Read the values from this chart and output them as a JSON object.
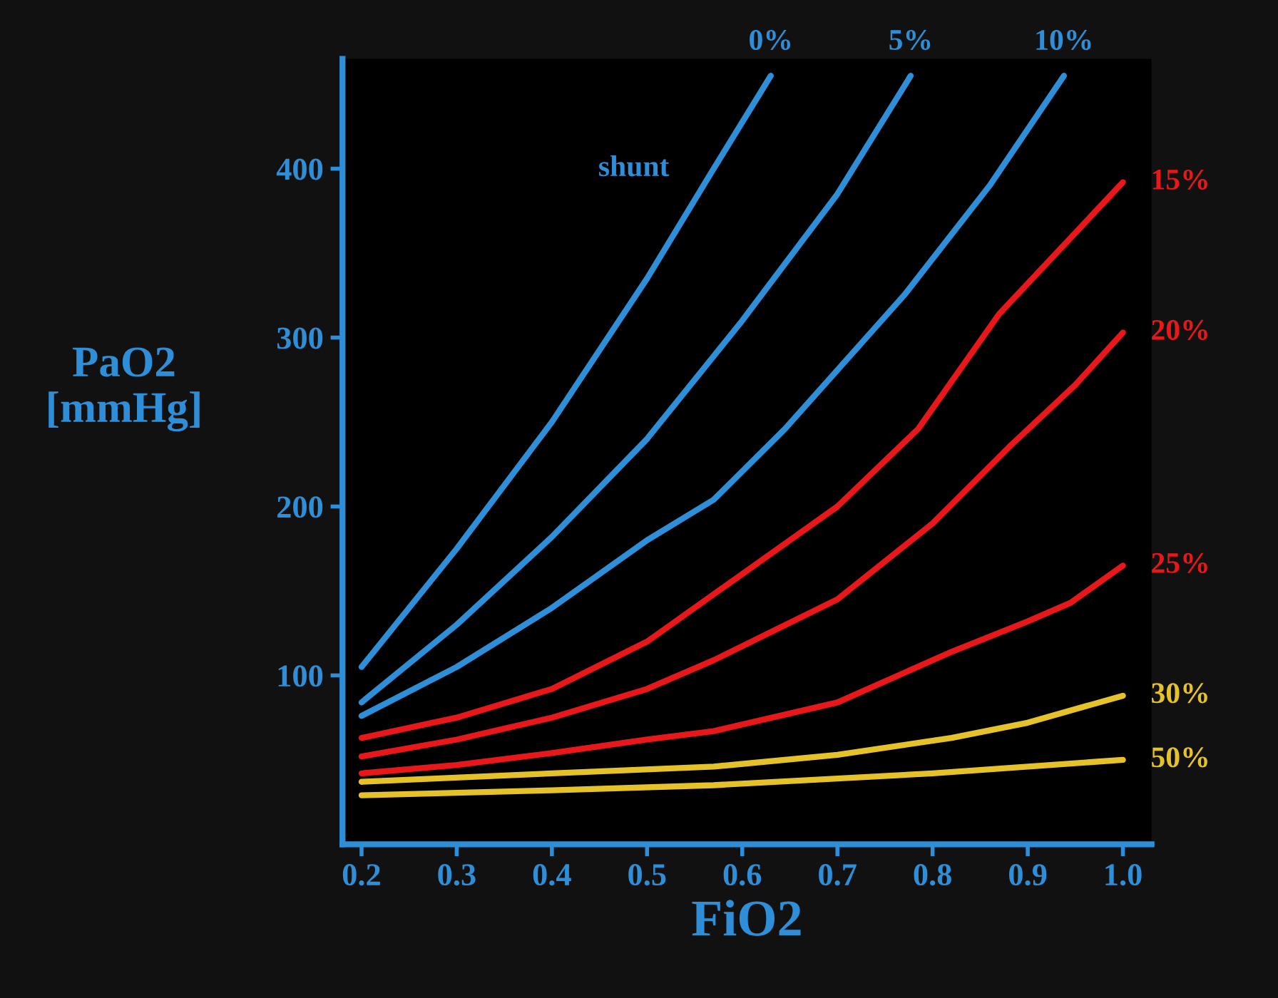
{
  "chart_data": {
    "type": "line",
    "xlabel": "FiO2",
    "ylabel": "PaO2\n[mmHg]",
    "xlim": [
      0.18,
      1.03
    ],
    "ylim": [
      0,
      465
    ],
    "xticks": [
      0.2,
      0.3,
      0.4,
      0.5,
      0.6,
      0.7,
      0.8,
      0.9,
      {
        "value": 1,
        "label": "1.0"
      }
    ],
    "yticks": [
      100,
      200,
      300,
      400
    ],
    "grid": false,
    "legend": false,
    "marker": "none",
    "line_style": "solid",
    "annotations": [
      "shunt"
    ],
    "series": [
      {
        "name": "0%",
        "color": "#2f8ed8",
        "x": [
          0.2,
          0.3,
          0.4,
          0.5,
          0.57,
          0.63
        ],
        "values": [
          105,
          175,
          250,
          335,
          400,
          455
        ]
      },
      {
        "name": "5%",
        "color": "#2f8ed8",
        "x": [
          0.2,
          0.3,
          0.4,
          0.5,
          0.6,
          0.7,
          0.777
        ],
        "values": [
          84,
          130,
          182,
          240,
          310,
          385,
          455
        ]
      },
      {
        "name": "10%",
        "color": "#2f8ed8",
        "x": [
          0.2,
          0.3,
          0.4,
          0.5,
          0.57,
          0.645,
          0.77,
          0.86,
          0.938
        ],
        "values": [
          76,
          105,
          140,
          180,
          204,
          246,
          325,
          390,
          455
        ]
      },
      {
        "name": "15%",
        "color": "#e8181a",
        "x": [
          0.2,
          0.3,
          0.4,
          0.5,
          0.57,
          0.7,
          0.785,
          0.87,
          1.0
        ],
        "values": [
          63,
          75,
          92,
          120,
          148,
          200,
          246,
          314,
          392
        ]
      },
      {
        "name": "20%",
        "color": "#e8181a",
        "x": [
          0.2,
          0.3,
          0.4,
          0.5,
          0.57,
          0.7,
          0.8,
          0.88,
          0.95,
          1.0
        ],
        "values": [
          52,
          62,
          75,
          92,
          109,
          145,
          190,
          235,
          272,
          303
        ]
      },
      {
        "name": "25%",
        "color": "#e8181a",
        "x": [
          0.2,
          0.3,
          0.4,
          0.5,
          0.57,
          0.7,
          0.82,
          0.9,
          0.945,
          1.0
        ],
        "values": [
          42,
          47,
          54,
          62,
          67,
          84,
          114,
          132,
          143,
          165
        ]
      },
      {
        "name": "30%",
        "color": "#e6c22a",
        "x": [
          0.2,
          0.4,
          0.57,
          0.7,
          0.82,
          0.9,
          1.0
        ],
        "values": [
          37,
          42,
          46,
          53,
          63,
          72,
          88
        ]
      },
      {
        "name": "50%",
        "color": "#e6c22a",
        "x": [
          0.2,
          0.4,
          0.57,
          0.8,
          1.0
        ],
        "values": [
          29,
          32,
          35,
          42,
          50
        ]
      }
    ]
  }
}
